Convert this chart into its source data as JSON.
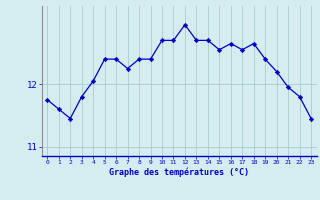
{
  "hours": [
    0,
    1,
    2,
    3,
    4,
    5,
    6,
    7,
    8,
    9,
    10,
    11,
    12,
    13,
    14,
    15,
    16,
    17,
    18,
    19,
    20,
    21,
    22,
    23
  ],
  "temps": [
    11.75,
    11.6,
    11.45,
    11.8,
    12.05,
    12.4,
    12.4,
    12.25,
    12.4,
    12.4,
    12.7,
    12.7,
    12.95,
    12.7,
    12.7,
    12.55,
    12.65,
    12.55,
    12.65,
    12.4,
    12.2,
    11.95,
    11.8,
    11.45
  ],
  "ylabel_ticks": [
    11,
    12
  ],
  "xlabel": "Graphe des températures (°C)",
  "line_color": "#0000cc",
  "marker_color": "#0000cc",
  "bg_color": "#d5edf0",
  "grid_color": "#aacccc",
  "axis_color": "#0000cc",
  "spine_color": "#888899",
  "xlim": [
    -0.5,
    23.5
  ],
  "ylim": [
    10.85,
    13.25
  ]
}
